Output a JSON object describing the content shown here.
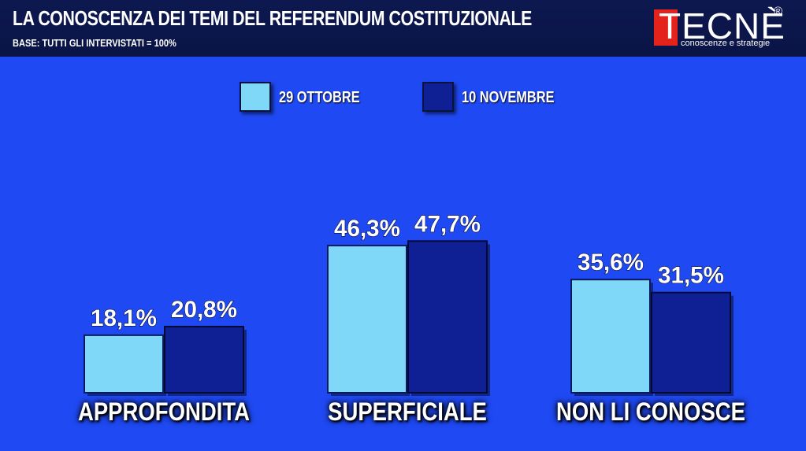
{
  "header": {
    "title": "LA CONOSCENZA DEI TEMI DEL REFERENDUM COSTITUZIONALE",
    "subtitle": "BASE: TUTTI GLI INTERVISTATI = 100%"
  },
  "logo": {
    "name": "TECNÈ",
    "registered": "®",
    "tagline": "conoscenze e strategie",
    "accent_color": "#e3231c"
  },
  "colors": {
    "background": "#1f49f2",
    "header": "#0d1850",
    "series_1": "#7fd8f7",
    "series_2": "#0f1f94"
  },
  "chart_data": {
    "type": "bar",
    "title": "LA CONOSCENZA DEI TEMI DEL REFERENDUM COSTITUZIONALE",
    "subtitle": "BASE: TUTTI GLI INTERVISTATI = 100%",
    "categories": [
      "APPROFONDITA",
      "SUPERFICIALE",
      "NON LI CONOSCE"
    ],
    "series": [
      {
        "name": "29 OTTOBRE",
        "values": [
          18.1,
          46.3,
          35.6
        ],
        "labels": [
          "18,1%",
          "46,3%",
          "35,6%"
        ],
        "color": "#7fd8f7"
      },
      {
        "name": "10 NOVEMBRE",
        "values": [
          20.8,
          47.7,
          31.5
        ],
        "labels": [
          "20,8%",
          "47,7%",
          "31,5%"
        ],
        "color": "#0f1f94"
      }
    ],
    "unit": "%",
    "ylim": [
      0,
      50
    ],
    "legend": "top-center",
    "grid": false,
    "xlabel": "",
    "ylabel": ""
  }
}
